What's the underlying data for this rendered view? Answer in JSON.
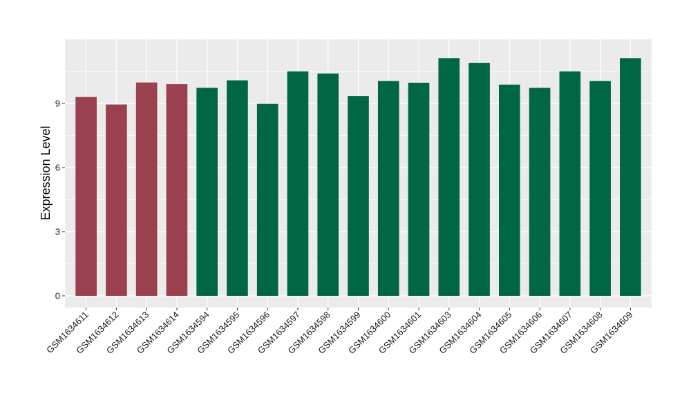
{
  "chart_data": {
    "type": "bar",
    "title": "",
    "xlabel": "",
    "ylabel": "Expression Level",
    "ylim": [
      -0.55,
      12
    ],
    "y_ticks": [
      0,
      3,
      6,
      9
    ],
    "y_tick_labels": [
      "0",
      "3",
      "6",
      "9"
    ],
    "grid": true,
    "legend": "none",
    "colors": {
      "group_a": "#9A404E",
      "group_b": "#006644",
      "panel": "#EBEBEB",
      "grid": "#FFFFFF"
    },
    "categories": [
      "GSM1634611",
      "GSM1634612",
      "GSM1634613",
      "GSM1634614",
      "GSM1634594",
      "GSM1634595",
      "GSM1634596",
      "GSM1634597",
      "GSM1634598",
      "GSM1634599",
      "GSM1634600",
      "GSM1634601",
      "GSM1634603",
      "GSM1634604",
      "GSM1634605",
      "GSM1634606",
      "GSM1634607",
      "GSM1634608",
      "GSM1634609"
    ],
    "values": [
      9.3,
      8.95,
      9.98,
      9.9,
      9.73,
      10.08,
      8.98,
      10.5,
      10.4,
      9.35,
      10.05,
      9.97,
      11.12,
      10.9,
      9.88,
      9.73,
      10.5,
      10.05,
      11.12
    ],
    "bar_groups": [
      "a",
      "a",
      "a",
      "a",
      "b",
      "b",
      "b",
      "b",
      "b",
      "b",
      "b",
      "b",
      "b",
      "b",
      "b",
      "b",
      "b",
      "b",
      "b"
    ]
  }
}
